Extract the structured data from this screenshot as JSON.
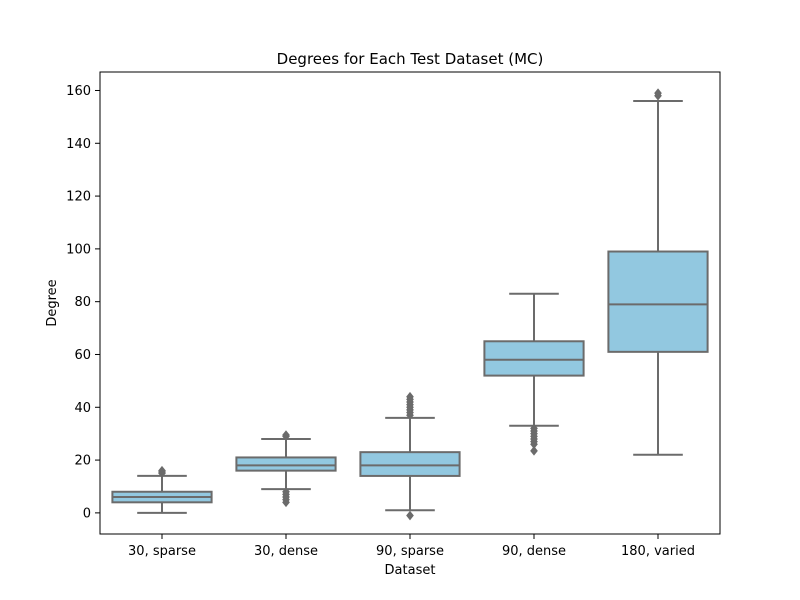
{
  "chart_data": {
    "type": "box",
    "title": "Degrees for Each Test Dataset (MC)",
    "xlabel": "Dataset",
    "ylabel": "Degree",
    "ylim": [
      -8,
      167
    ],
    "yticks": [
      0,
      20,
      40,
      60,
      80,
      100,
      120,
      140,
      160
    ],
    "box_fill": "#92c8e0",
    "line_color": "#6b6b6b",
    "categories": [
      "30, sparse",
      "30, dense",
      "90, sparse",
      "90, dense",
      "180, varied"
    ],
    "boxes": [
      {
        "category": "30, sparse",
        "whisker_low": 0,
        "q1": 4,
        "median": 6,
        "q3": 8,
        "whisker_high": 14,
        "outliers": [
          15,
          15.5,
          16
        ]
      },
      {
        "category": "30, dense",
        "whisker_low": 9,
        "q1": 16,
        "median": 18,
        "q3": 21,
        "whisker_high": 28,
        "outliers": [
          4,
          5,
          6,
          7,
          8,
          29,
          29.5
        ]
      },
      {
        "category": "90, sparse",
        "whisker_low": 1,
        "q1": 14,
        "median": 18,
        "q3": 23,
        "whisker_high": 36,
        "outliers": [
          -1,
          37,
          38,
          39,
          40,
          41,
          42,
          43,
          44
        ]
      },
      {
        "category": "90, dense",
        "whisker_low": 33,
        "q1": 52,
        "median": 58,
        "q3": 65,
        "whisker_high": 83,
        "outliers": [
          23.5,
          26,
          27,
          28,
          29,
          30,
          31,
          32
        ]
      },
      {
        "category": "180, varied",
        "whisker_low": 22,
        "q1": 61,
        "median": 79,
        "q3": 99,
        "whisker_high": 156,
        "outliers": [
          158,
          159
        ]
      }
    ]
  }
}
